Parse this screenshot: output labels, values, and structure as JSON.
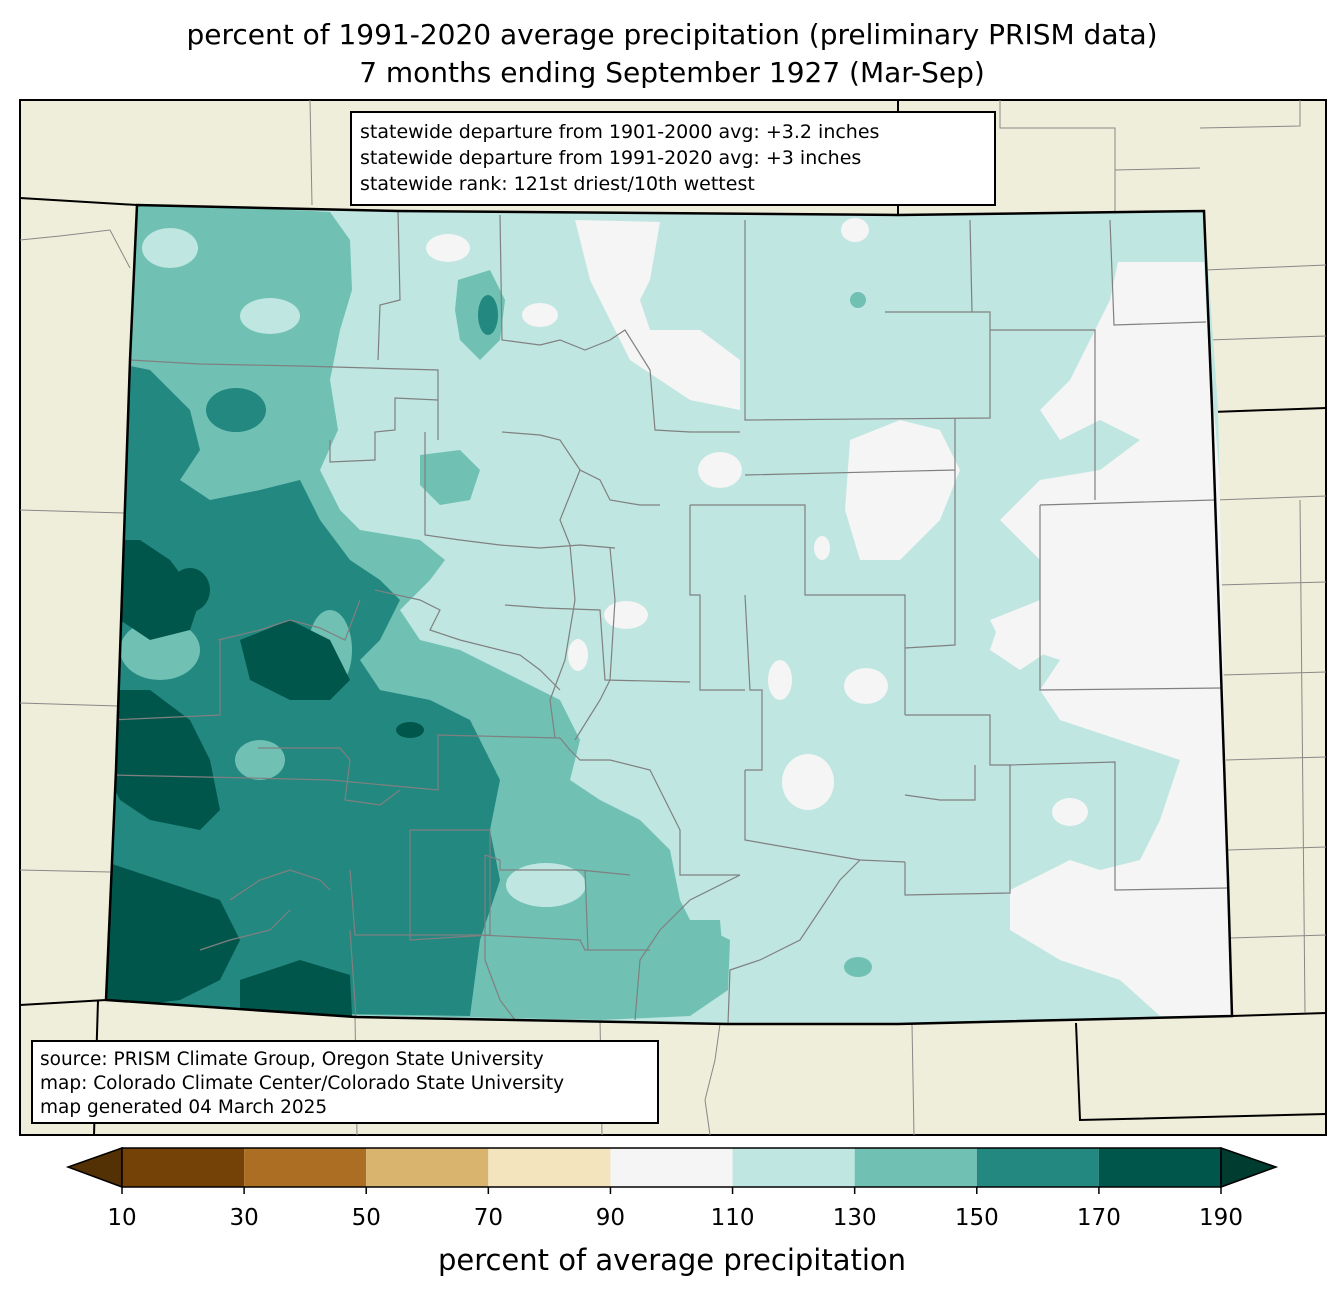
{
  "title": {
    "line1": "percent of 1991-2020 average precipitation (preliminary PRISM data)",
    "line2": "7 months ending September 1927 (Mar-Sep)"
  },
  "stats_box": {
    "line1": "statewide departure from 1901-2000 avg: +3.2 inches",
    "line2": "statewide departure from 1991-2020 avg: +3 inches",
    "line3": "statewide rank: 121st driest/10th wettest"
  },
  "source_box": {
    "line1": "source: PRISM Climate Group, Oregon State University",
    "line2": "map: Colorado Climate Center/Colorado State University",
    "line3": "map generated 04 March 2025"
  },
  "colorbar": {
    "label": "percent of average precipitation",
    "ticks": [
      "10",
      "30",
      "50",
      "70",
      "90",
      "110",
      "130",
      "150",
      "170",
      "190"
    ],
    "under_color": "#543005",
    "over_color": "#003c30",
    "bins": [
      {
        "from": 10,
        "to": 30,
        "color": "#744107"
      },
      {
        "from": 30,
        "to": 50,
        "color": "#ab6e22"
      },
      {
        "from": 50,
        "to": 70,
        "color": "#d8b46e"
      },
      {
        "from": 70,
        "to": 90,
        "color": "#f4e4bd"
      },
      {
        "from": 90,
        "to": 110,
        "color": "#f4f5f4"
      },
      {
        "from": 110,
        "to": 130,
        "color": "#bfe6e0"
      },
      {
        "from": 130,
        "to": 150,
        "color": "#70c0b4"
      },
      {
        "from": 150,
        "to": 170,
        "color": "#228880"
      },
      {
        "from": 170,
        "to": 190,
        "color": "#01564c"
      }
    ]
  },
  "colors": {
    "background_land": "#efeedb",
    "county_lines": "#808080",
    "state_border": "#000000"
  }
}
